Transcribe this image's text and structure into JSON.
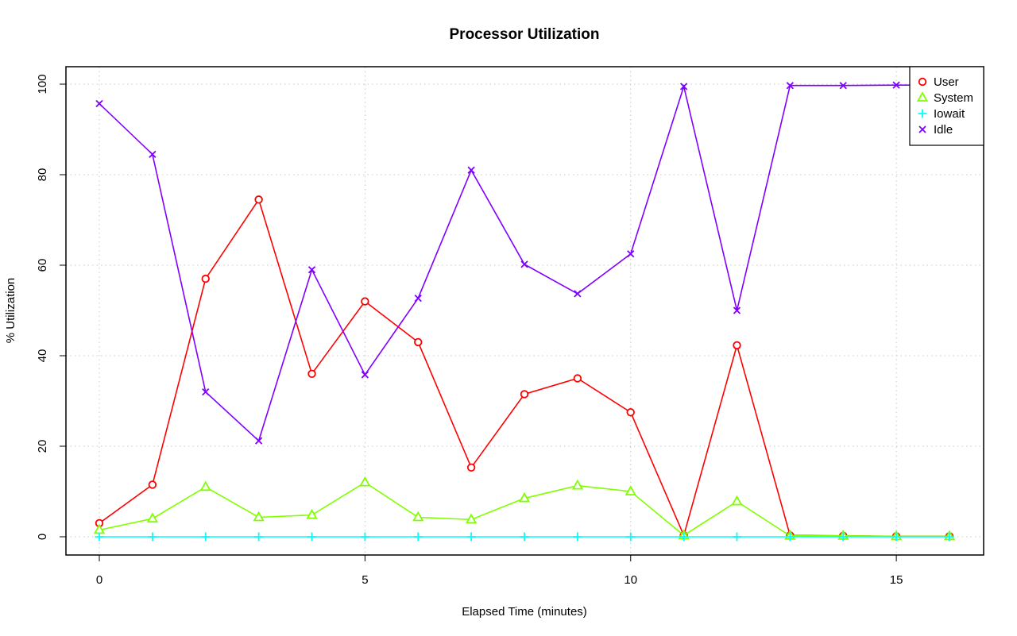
{
  "chart_data": {
    "type": "line",
    "title": "Processor Utilization",
    "xlabel": "Elapsed Time (minutes)",
    "ylabel": "% Utilization",
    "xlim": [
      0,
      16
    ],
    "ylim": [
      0,
      100
    ],
    "x_ticks": [
      "0",
      "5",
      "10",
      "15"
    ],
    "y_ticks": [
      "0",
      "20",
      "40",
      "60",
      "80",
      "100"
    ],
    "grid": true,
    "legend_position": "top-right",
    "x": [
      0,
      1,
      2,
      3,
      4,
      5,
      6,
      7,
      8,
      9,
      10,
      11,
      12,
      13,
      14,
      15,
      16
    ],
    "series": [
      {
        "name": "User",
        "color": "#ff0000",
        "marker": "circle",
        "values": [
          3,
          11.5,
          57,
          74.5,
          36,
          52,
          43,
          15.3,
          31.5,
          35,
          27.5,
          0.3,
          42.3,
          0.3,
          0.2,
          0.1,
          0.1
        ]
      },
      {
        "name": "System",
        "color": "#80ff00",
        "marker": "triangle",
        "values": [
          1.5,
          4,
          11,
          4.3,
          4.8,
          12,
          4.3,
          3.8,
          8.5,
          11.3,
          10,
          0.3,
          7.8,
          0.2,
          0.2,
          0.1,
          0.1
        ]
      },
      {
        "name": "Iowait",
        "color": "#00ffff",
        "marker": "plus",
        "values": [
          0,
          0,
          0,
          0,
          0,
          0,
          0,
          0,
          0,
          0,
          0,
          0,
          0,
          0,
          0,
          0,
          0
        ]
      },
      {
        "name": "Idle",
        "color": "#8000ff",
        "marker": "cross",
        "values": [
          95.7,
          84.5,
          32,
          21.2,
          59,
          35.8,
          52.7,
          81,
          60.2,
          53.7,
          62.5,
          99.5,
          50,
          99.7,
          99.7,
          99.8,
          99.8
        ]
      }
    ]
  }
}
